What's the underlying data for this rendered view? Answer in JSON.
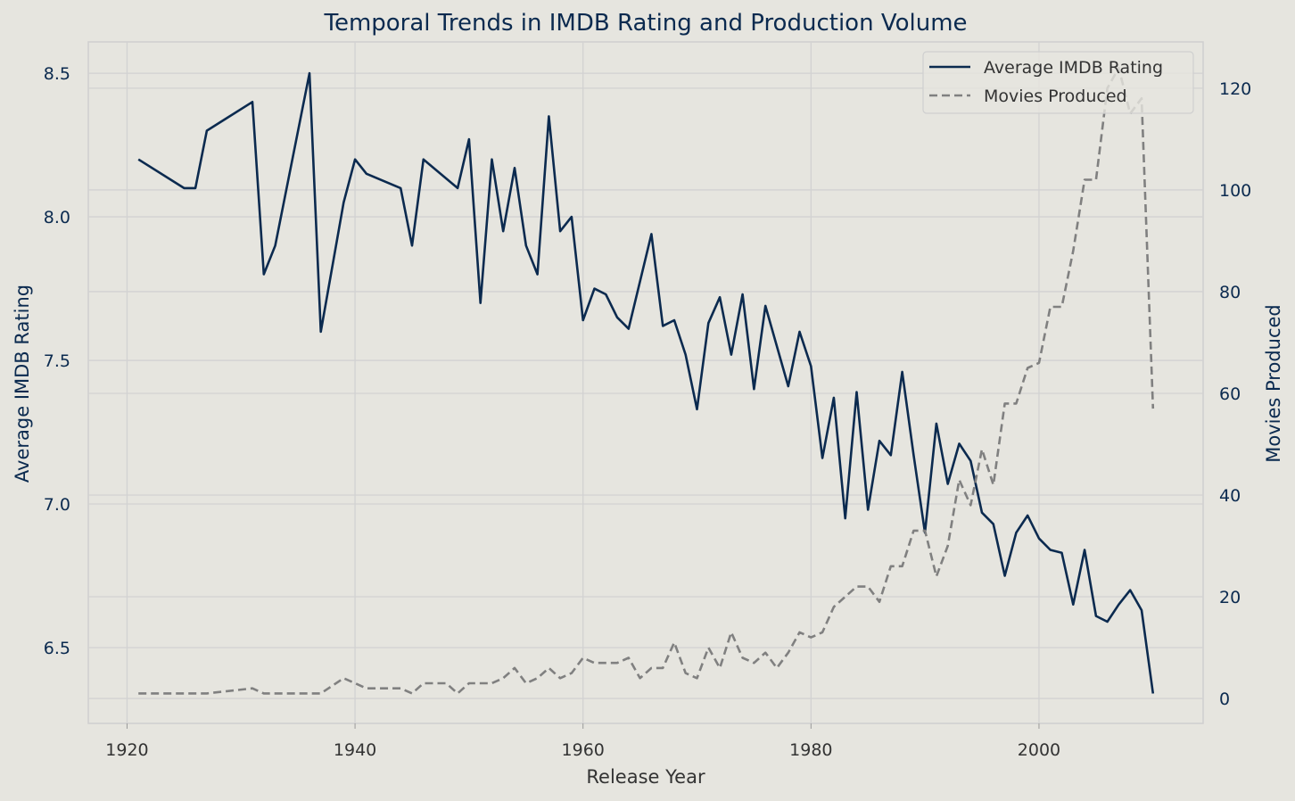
{
  "chart_data": {
    "type": "line",
    "title": "Temporal Trends in IMDB Rating and Production Volume",
    "xlabel": "Release Year",
    "ylabel": "Average IMDB Rating",
    "ylabel_right": "Movies Produced",
    "xlim": [
      1916.6,
      2014.4
    ],
    "ylim": [
      6.236,
      8.609
    ],
    "ylim_right": [
      -4.9,
      129.1
    ],
    "xticks": [
      1920,
      1940,
      1960,
      1980,
      2000
    ],
    "yticks": [
      6.5,
      7.0,
      7.5,
      8.0,
      8.5
    ],
    "ytick_labels": [
      "6.5",
      "7.0",
      "7.5",
      "8.0",
      "8.5"
    ],
    "yticks_right": [
      0,
      20,
      40,
      60,
      80,
      100,
      120
    ],
    "grid": true,
    "legend_position": "top-right",
    "colors": {
      "rating": "#0b2a4f",
      "movies": "#808080",
      "background": "#e6e5df",
      "grid": "#d2d2d2"
    },
    "series": [
      {
        "name": "Average IMDB Rating",
        "axis": "left",
        "style": "solid",
        "x": [
          1921,
          1925,
          1926,
          1927,
          1931,
          1932,
          1933,
          1936,
          1937,
          1939,
          1940,
          1941,
          1944,
          1945,
          1946,
          1949,
          1950,
          1951,
          1952,
          1953,
          1954,
          1955,
          1956,
          1957,
          1958,
          1959,
          1960,
          1961,
          1962,
          1963,
          1964,
          1966,
          1967,
          1968,
          1969,
          1970,
          1971,
          1972,
          1973,
          1974,
          1975,
          1976,
          1977,
          1978,
          1979,
          1980,
          1981,
          1982,
          1983,
          1984,
          1985,
          1986,
          1987,
          1988,
          1989,
          1990,
          1991,
          1992,
          1993,
          1994,
          1995,
          1996,
          1997,
          1998,
          1999,
          2000,
          2001,
          2002,
          2003,
          2004,
          2005,
          2006,
          2007,
          2008,
          2009,
          2010
        ],
        "values": [
          8.2,
          8.1,
          8.1,
          8.3,
          8.4,
          7.8,
          7.9,
          8.5,
          7.6,
          8.05,
          8.2,
          8.15,
          8.1,
          7.9,
          8.2,
          8.1,
          8.27,
          7.7,
          8.2,
          7.95,
          8.17,
          7.9,
          7.8,
          8.35,
          7.95,
          8.0,
          7.64,
          7.75,
          7.73,
          7.65,
          7.61,
          7.94,
          7.62,
          7.64,
          7.52,
          7.33,
          7.63,
          7.72,
          7.52,
          7.73,
          7.4,
          7.69,
          7.55,
          7.41,
          7.6,
          7.48,
          7.16,
          7.37,
          6.95,
          7.39,
          6.98,
          7.22,
          7.17,
          7.46,
          7.17,
          6.9,
          7.28,
          7.07,
          7.21,
          7.15,
          6.97,
          6.93,
          6.75,
          6.9,
          6.96,
          6.88,
          6.84,
          6.83,
          6.65,
          6.84,
          6.61,
          6.59,
          6.65,
          6.7,
          6.63,
          6.34
        ]
      },
      {
        "name": "Movies Produced",
        "axis": "right",
        "style": "dashed",
        "x": [
          1921,
          1925,
          1926,
          1927,
          1931,
          1932,
          1933,
          1936,
          1937,
          1939,
          1940,
          1941,
          1944,
          1945,
          1946,
          1948,
          1949,
          1950,
          1952,
          1953,
          1954,
          1955,
          1956,
          1957,
          1958,
          1959,
          1960,
          1961,
          1962,
          1963,
          1964,
          1965,
          1966,
          1967,
          1968,
          1969,
          1970,
          1971,
          1972,
          1973,
          1974,
          1975,
          1976,
          1977,
          1978,
          1979,
          1980,
          1981,
          1982,
          1983,
          1984,
          1985,
          1986,
          1987,
          1988,
          1989,
          1990,
          1991,
          1992,
          1993,
          1994,
          1995,
          1996,
          1997,
          1998,
          1999,
          2000,
          2001,
          2002,
          2003,
          2004,
          2005,
          2006,
          2007,
          2008,
          2009,
          2010
        ],
        "values": [
          1,
          1,
          1,
          1,
          2,
          1,
          1,
          1,
          1,
          4,
          3,
          2,
          2,
          1,
          3,
          3,
          1,
          3,
          3,
          4,
          6,
          3,
          4,
          6,
          4,
          5,
          8,
          7,
          7,
          7,
          8,
          4,
          6,
          6,
          11,
          5,
          4,
          10,
          6,
          13,
          8,
          7,
          9,
          6,
          9,
          13,
          12,
          13,
          18,
          20,
          22,
          22,
          19,
          26,
          26,
          33,
          33,
          24,
          30,
          43,
          38,
          49,
          42,
          58,
          58,
          65,
          66,
          77,
          77,
          88,
          102,
          102,
          120,
          124,
          115,
          118,
          57
        ]
      }
    ]
  }
}
